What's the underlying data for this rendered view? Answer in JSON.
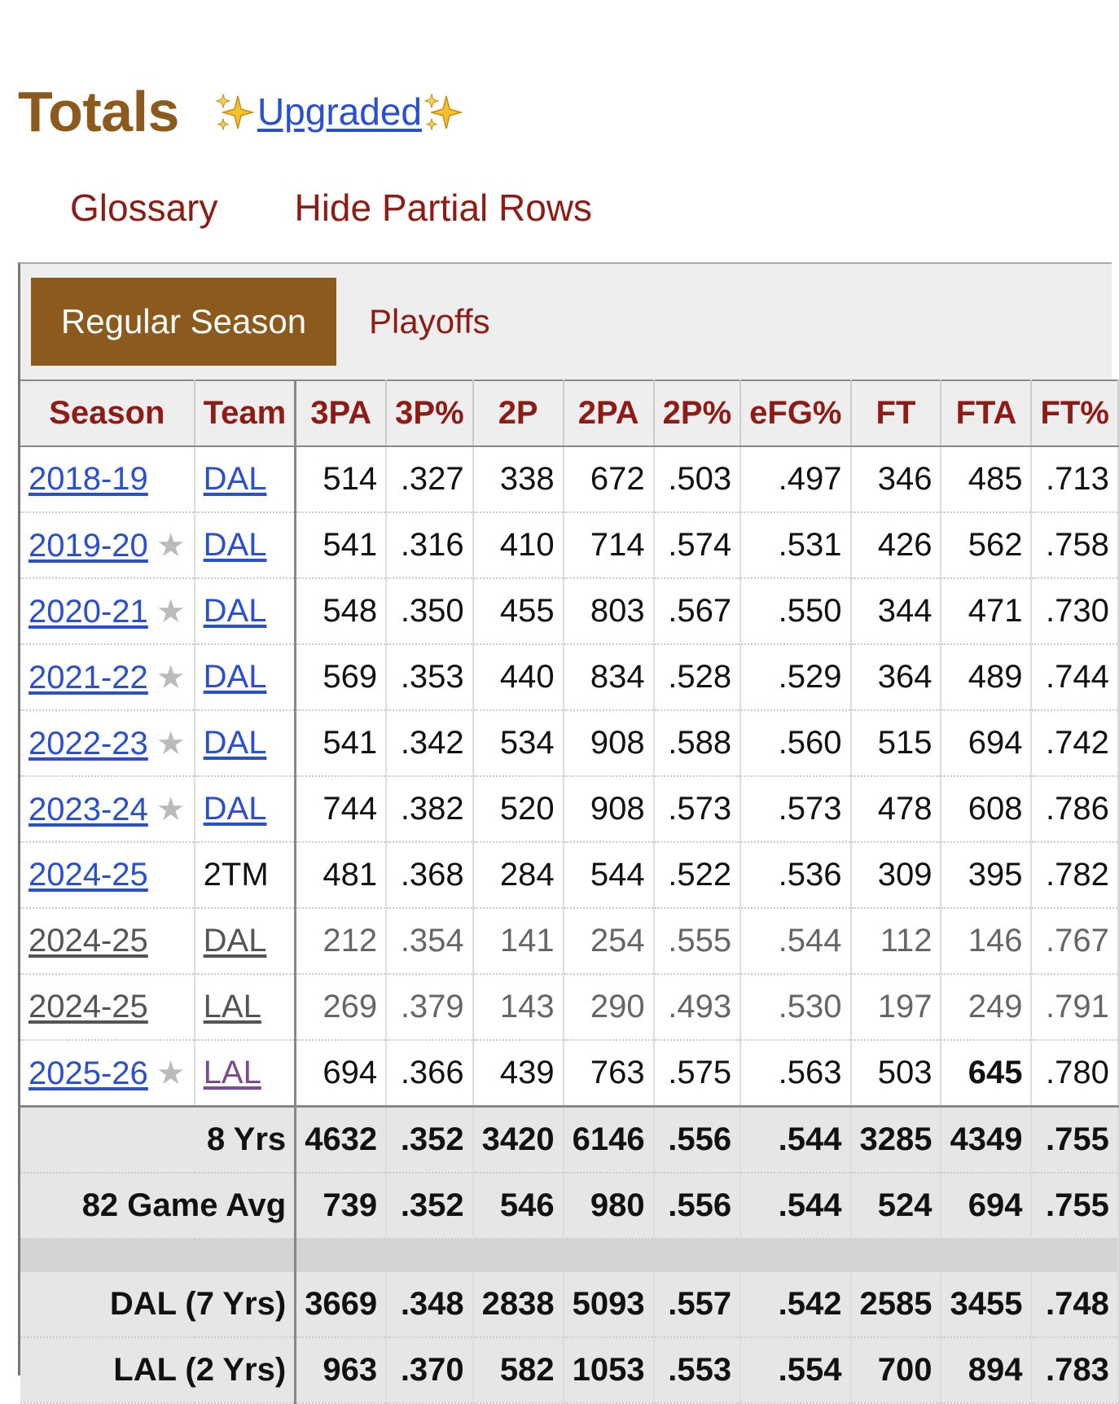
{
  "header": {
    "title": "Totals",
    "upgraded_label": "Upgraded"
  },
  "links": {
    "glossary": "Glossary",
    "hide_partial": "Hide Partial Rows"
  },
  "tabs": {
    "regular": "Regular Season",
    "playoffs": "Playoffs"
  },
  "columns": [
    "Season",
    "Team",
    "3PA",
    "3P%",
    "2P",
    "2PA",
    "2P%",
    "eFG%",
    "FT",
    "FTA",
    "FT%"
  ],
  "rows": [
    {
      "season": "2018-19",
      "star": false,
      "team": "DAL",
      "team_link": true,
      "partial": false,
      "vals": [
        "514",
        ".327",
        "338",
        "672",
        ".503",
        ".497",
        "346",
        "485",
        ".713"
      ]
    },
    {
      "season": "2019-20",
      "star": true,
      "team": "DAL",
      "team_link": true,
      "partial": false,
      "vals": [
        "541",
        ".316",
        "410",
        "714",
        ".574",
        ".531",
        "426",
        "562",
        ".758"
      ]
    },
    {
      "season": "2020-21",
      "star": true,
      "team": "DAL",
      "team_link": true,
      "partial": false,
      "vals": [
        "548",
        ".350",
        "455",
        "803",
        ".567",
        ".550",
        "344",
        "471",
        ".730"
      ]
    },
    {
      "season": "2021-22",
      "star": true,
      "team": "DAL",
      "team_link": true,
      "partial": false,
      "vals": [
        "569",
        ".353",
        "440",
        "834",
        ".528",
        ".529",
        "364",
        "489",
        ".744"
      ]
    },
    {
      "season": "2022-23",
      "star": true,
      "team": "DAL",
      "team_link": true,
      "partial": false,
      "vals": [
        "541",
        ".342",
        "534",
        "908",
        ".588",
        ".560",
        "515",
        "694",
        ".742"
      ]
    },
    {
      "season": "2023-24",
      "star": true,
      "team": "DAL",
      "team_link": true,
      "partial": false,
      "vals": [
        "744",
        ".382",
        "520",
        "908",
        ".573",
        ".573",
        "478",
        "608",
        ".786"
      ]
    },
    {
      "season": "2024-25",
      "star": false,
      "team": "2TM",
      "team_link": false,
      "partial": false,
      "vals": [
        "481",
        ".368",
        "284",
        "544",
        ".522",
        ".536",
        "309",
        "395",
        ".782"
      ]
    },
    {
      "season": "2024-25",
      "star": false,
      "team": "DAL",
      "team_link": true,
      "partial": true,
      "vals": [
        "212",
        ".354",
        "141",
        "254",
        ".555",
        ".544",
        "112",
        "146",
        ".767"
      ]
    },
    {
      "season": "2024-25",
      "star": false,
      "team": "LAL",
      "team_link": true,
      "partial": true,
      "vals": [
        "269",
        ".379",
        "143",
        "290",
        ".493",
        ".530",
        "197",
        "249",
        ".791"
      ]
    },
    {
      "season": "2025-26",
      "star": true,
      "team": "LAL",
      "team_link": true,
      "partial": false,
      "visited": true,
      "vals": [
        "694",
        ".366",
        "439",
        "763",
        ".575",
        ".563",
        "503",
        "645",
        ".780"
      ],
      "bold_index": 7
    }
  ],
  "footer": [
    {
      "label": "8 Yrs",
      "vals": [
        "4632",
        ".352",
        "3420",
        "6146",
        ".556",
        ".544",
        "3285",
        "4349",
        ".755"
      ]
    },
    {
      "label": "82 Game Avg",
      "vals": [
        "739",
        ".352",
        "546",
        "980",
        ".556",
        ".544",
        "524",
        "694",
        ".755"
      ]
    },
    {
      "label": "DAL (7 Yrs)",
      "vals": [
        "3669",
        ".348",
        "2838",
        "5093",
        ".557",
        ".542",
        "2585",
        "3455",
        ".748"
      ]
    },
    {
      "label": "LAL (2 Yrs)",
      "vals": [
        "963",
        ".370",
        "582",
        "1053",
        ".553",
        ".554",
        "700",
        "894",
        ".783"
      ]
    }
  ],
  "colors": {
    "brand_brown": "#8b5a1c",
    "link_red": "#8e1c16",
    "link_blue": "#2a4fd0"
  },
  "icons": {
    "sparkle": "sparkles-icon",
    "star": "star-icon"
  }
}
